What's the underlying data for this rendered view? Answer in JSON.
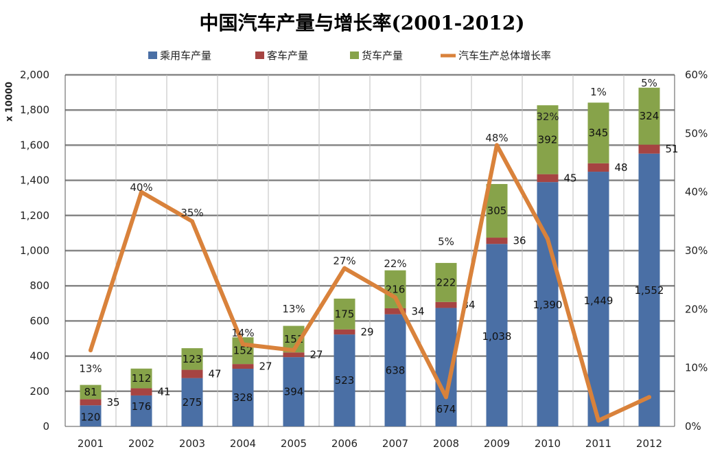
{
  "chart_data": {
    "type": "bar",
    "title": "中国汽车产量与增长率(2001-2012)",
    "ylabel": "x 10000",
    "categories": [
      "2001",
      "2002",
      "2003",
      "2004",
      "2005",
      "2006",
      "2007",
      "2008",
      "2009",
      "2010",
      "2011",
      "2012"
    ],
    "series": [
      {
        "name": "乘用车产量",
        "kind": "bar",
        "axis": "left",
        "color": "#4a6fa5",
        "values": [
          120,
          176,
          275,
          328,
          394,
          523,
          638,
          674,
          1038,
          1390,
          1449,
          1552
        ],
        "labels": [
          "120",
          "176",
          "275",
          "328",
          "394",
          "523",
          "638",
          "674",
          "1,038",
          "1,390",
          "1,449",
          "1,552"
        ]
      },
      {
        "name": "客车产量",
        "kind": "bar",
        "axis": "left",
        "color": "#a64442",
        "values": [
          35,
          41,
          47,
          27,
          27,
          29,
          34,
          34,
          36,
          45,
          48,
          51
        ],
        "labels": [
          "35",
          "41",
          "47",
          "27",
          "27",
          "29",
          "34",
          "34",
          "36",
          "45",
          "48",
          "51"
        ]
      },
      {
        "name": "货车产量",
        "kind": "bar",
        "axis": "left",
        "color": "#87a34a",
        "values": [
          81,
          112,
          123,
          152,
          151,
          175,
          216,
          222,
          305,
          392,
          345,
          324
        ],
        "labels": [
          "81",
          "112",
          "123",
          "152",
          "151",
          "175",
          "216",
          "222",
          "305",
          "392",
          "345",
          "324"
        ]
      },
      {
        "name": "汽车生产总体增长率",
        "kind": "line",
        "axis": "right",
        "color": "#d9823b",
        "values": [
          13,
          40,
          35,
          14,
          13,
          27,
          22,
          5,
          48,
          32,
          1,
          5
        ],
        "labels": [
          "13%",
          "40%",
          "35%",
          "14%",
          "13%",
          "27%",
          "22%",
          "5%",
          "48%",
          "32%",
          "1%",
          "5%"
        ]
      }
    ],
    "ylim": [
      0,
      2000
    ],
    "yticks": [
      "0",
      "200",
      "400",
      "600",
      "800",
      "1,000",
      "1,200",
      "1,400",
      "1,600",
      "1,800",
      "2,000"
    ],
    "y2lim": [
      0,
      60
    ],
    "y2ticks": [
      "0%",
      "10%",
      "20%",
      "30%",
      "40%",
      "50%",
      "60%"
    ],
    "grid": true,
    "legend_position": "top"
  }
}
